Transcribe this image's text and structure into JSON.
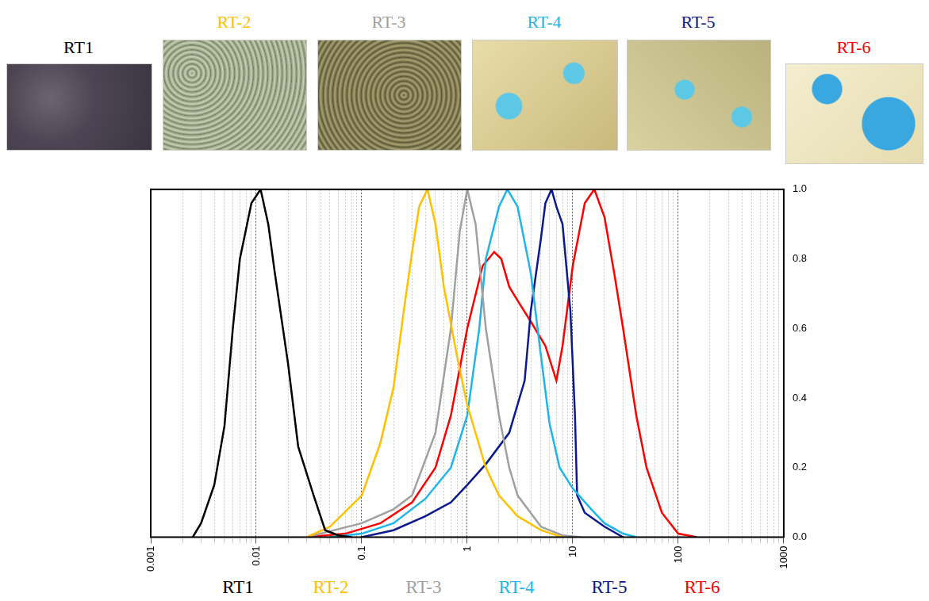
{
  "chart_data": {
    "type": "line",
    "log": "x",
    "grid": true,
    "legend": "bottom",
    "xlim": [
      0.001,
      1000
    ],
    "xticks": [
      0.001,
      0.01,
      0.1,
      1,
      10,
      100,
      1000
    ],
    "ylim": [
      0,
      1
    ],
    "yticks": [
      {
        "value": 0,
        "label": "0.0"
      },
      {
        "value": 0.2,
        "label": "0.2"
      },
      {
        "value": 0.4,
        "label": "0.4"
      },
      {
        "value": 0.6,
        "label": "0.6"
      },
      {
        "value": 0.8,
        "label": "0.8"
      },
      {
        "value": 1,
        "label": "1.0"
      }
    ],
    "series": [
      {
        "name": "RT1",
        "color": "#000000",
        "x": [
          0.0025,
          0.003,
          0.004,
          0.005,
          0.006,
          0.007,
          0.009,
          0.011,
          0.013,
          0.015,
          0.02,
          0.025,
          0.035,
          0.045,
          0.06,
          0.08
        ],
        "values": [
          0,
          0.04,
          0.15,
          0.32,
          0.6,
          0.8,
          0.96,
          1.0,
          0.9,
          0.76,
          0.5,
          0.26,
          0.12,
          0.02,
          0.005,
          0
        ]
      },
      {
        "name": "RT-2",
        "color": "#FFC000",
        "x": [
          0.03,
          0.05,
          0.1,
          0.15,
          0.2,
          0.25,
          0.3,
          0.35,
          0.42,
          0.5,
          0.6,
          0.8,
          1,
          1.5,
          2,
          3,
          5,
          8
        ],
        "values": [
          0,
          0.03,
          0.12,
          0.27,
          0.43,
          0.65,
          0.82,
          0.95,
          1.0,
          0.9,
          0.72,
          0.52,
          0.38,
          0.2,
          0.12,
          0.06,
          0.02,
          0
        ]
      },
      {
        "name": "RT-3",
        "color": "#A0A0A0",
        "x": [
          0.03,
          0.1,
          0.2,
          0.3,
          0.5,
          0.7,
          0.85,
          1,
          1.2,
          1.5,
          2,
          2.5,
          3,
          5,
          8,
          12
        ],
        "values": [
          0,
          0.04,
          0.08,
          0.12,
          0.3,
          0.6,
          0.88,
          1.0,
          0.9,
          0.6,
          0.35,
          0.2,
          0.12,
          0.03,
          0.005,
          0
        ]
      },
      {
        "name": "RT-4",
        "color": "#1FB5EA",
        "x": [
          0.05,
          0.1,
          0.2,
          0.4,
          0.7,
          1,
          1.3,
          1.5,
          2,
          2.4,
          3,
          4,
          5,
          6,
          7.5,
          10,
          15,
          20,
          30,
          40
        ],
        "values": [
          0,
          0.01,
          0.04,
          0.11,
          0.2,
          0.35,
          0.6,
          0.8,
          0.95,
          1.0,
          0.95,
          0.76,
          0.52,
          0.33,
          0.2,
          0.14,
          0.08,
          0.04,
          0.01,
          0
        ]
      },
      {
        "name": "RT-5",
        "color": "#0A1A8C",
        "x": [
          0.1,
          0.2,
          0.4,
          0.7,
          1,
          1.5,
          2.5,
          3.5,
          4,
          5,
          5.5,
          6.3,
          7,
          8,
          9.5,
          10.5,
          11,
          13,
          20,
          30
        ],
        "values": [
          0,
          0.02,
          0.06,
          0.1,
          0.15,
          0.21,
          0.3,
          0.45,
          0.65,
          0.86,
          0.96,
          1.0,
          0.95,
          0.9,
          0.65,
          0.35,
          0.12,
          0.07,
          0.03,
          0
        ]
      },
      {
        "name": "RT-6",
        "color": "#FF0000",
        "x": [
          0.03,
          0.07,
          0.15,
          0.3,
          0.5,
          0.7,
          1,
          1.4,
          1.8,
          2.1,
          2.5,
          3,
          4,
          5.5,
          7,
          8,
          10,
          13,
          16,
          20,
          25,
          30,
          40,
          50,
          70,
          100,
          150
        ],
        "values": [
          0,
          0.01,
          0.04,
          0.1,
          0.2,
          0.35,
          0.6,
          0.78,
          0.82,
          0.8,
          0.72,
          0.68,
          0.62,
          0.55,
          0.45,
          0.55,
          0.78,
          0.96,
          1.0,
          0.92,
          0.75,
          0.6,
          0.35,
          0.2,
          0.07,
          0.01,
          0
        ]
      }
    ]
  }
}
